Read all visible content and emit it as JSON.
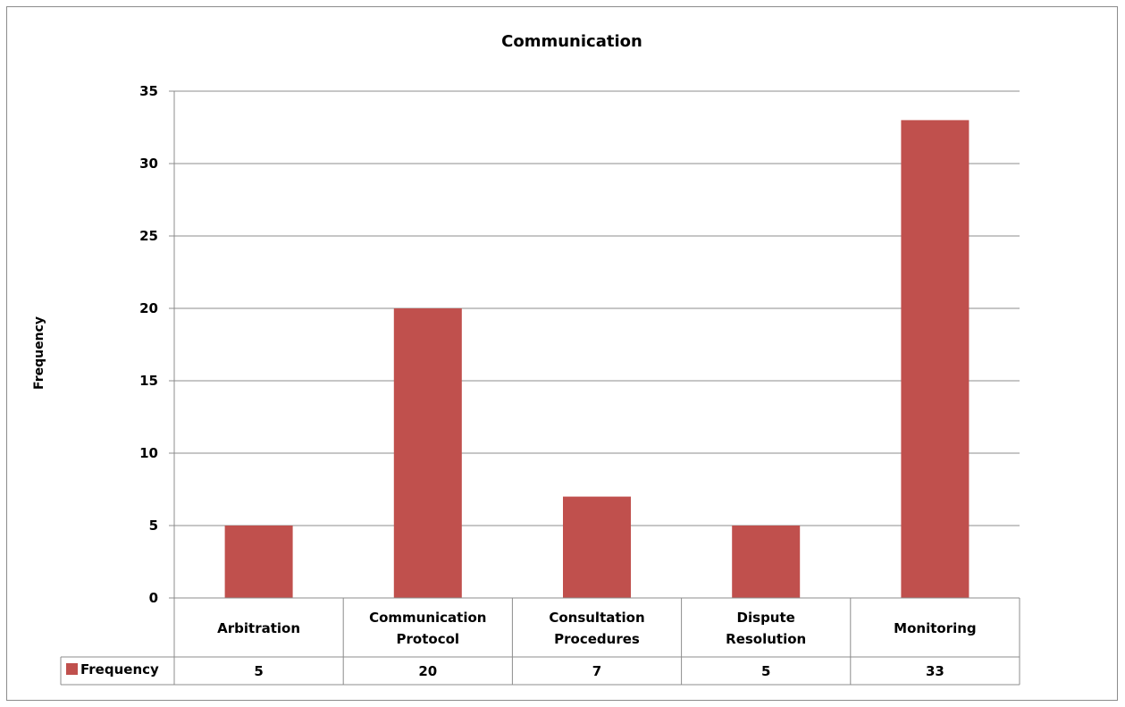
{
  "chart_data": {
    "type": "bar",
    "title": "Communication",
    "ylabel": "Frequency",
    "xlabel": "",
    "categories": [
      [
        "Arbitration"
      ],
      [
        "Communication",
        "Protocol"
      ],
      [
        "Consultation",
        "Procedures"
      ],
      [
        "Dispute",
        "Resolution"
      ],
      [
        "Monitoring"
      ]
    ],
    "series": [
      {
        "name": "Frequency",
        "values": [
          5,
          20,
          7,
          5,
          33
        ],
        "color": "#c0504d"
      }
    ],
    "ylim": [
      0,
      35
    ],
    "yticks": [
      0,
      5,
      10,
      15,
      20,
      25,
      30,
      35
    ],
    "grid": true,
    "legend": "data-table"
  }
}
